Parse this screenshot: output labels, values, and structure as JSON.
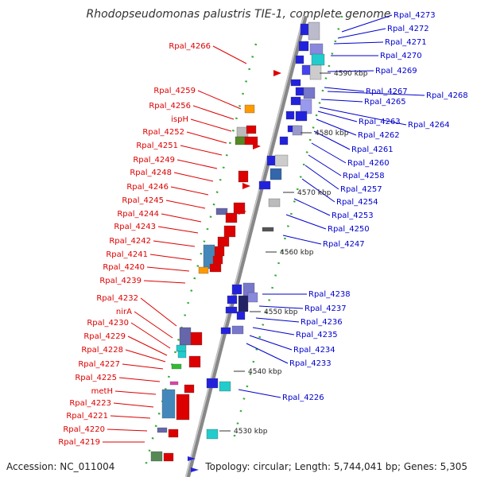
{
  "title": "Rhodopseudomonas palustris TIE-1, complete genome",
  "footer": {
    "accession": "Accession: NC_011004",
    "topology": "Topology: circular; Length: 5,744,041 bp; Genes: 5,305"
  },
  "colors": {
    "left_strand": "#dd0000",
    "right_strand": "#0000cc",
    "backbone": "#888888"
  },
  "kbp_ticks": [
    "4590 kbp",
    "4580 kbp",
    "4570 kbp",
    "4560 kbp",
    "4550 kbp",
    "4540 kbp",
    "4530 kbp"
  ],
  "left_genes": [
    "Rpal_4266",
    "Rpal_4259",
    "Rpal_4256",
    "ispH",
    "Rpal_4252",
    "Rpal_4251",
    "Rpal_4249",
    "Rpal_4248",
    "Rpal_4246",
    "Rpal_4245",
    "Rpal_4244",
    "Rpal_4243",
    "Rpal_4242",
    "Rpal_4241",
    "Rpal_4240",
    "Rpal_4239",
    "Rpal_4232",
    "nirA",
    "Rpal_4230",
    "Rpal_4229",
    "Rpal_4228",
    "Rpal_4227",
    "Rpal_4225",
    "metH",
    "Rpal_4223",
    "Rpal_4221",
    "Rpal_4220",
    "Rpal_4219"
  ],
  "right_genes": [
    "Rpal_4273",
    "Rpal_4272",
    "Rpal_4271",
    "Rpal_4270",
    "Rpal_4269",
    "Rpal_4267",
    "Rpal_4268",
    "Rpal_4265",
    "Rpal_4263",
    "Rpal_4264",
    "Rpal_4262",
    "Rpal_4261",
    "Rpal_4260",
    "Rpal_4258",
    "Rpal_4257",
    "Rpal_4254",
    "Rpal_4253",
    "Rpal_4250",
    "Rpal_4247",
    "Rpal_4238",
    "Rpal_4237",
    "Rpal_4236",
    "Rpal_4235",
    "Rpal_4234",
    "Rpal_4233",
    "Rpal_4226"
  ]
}
